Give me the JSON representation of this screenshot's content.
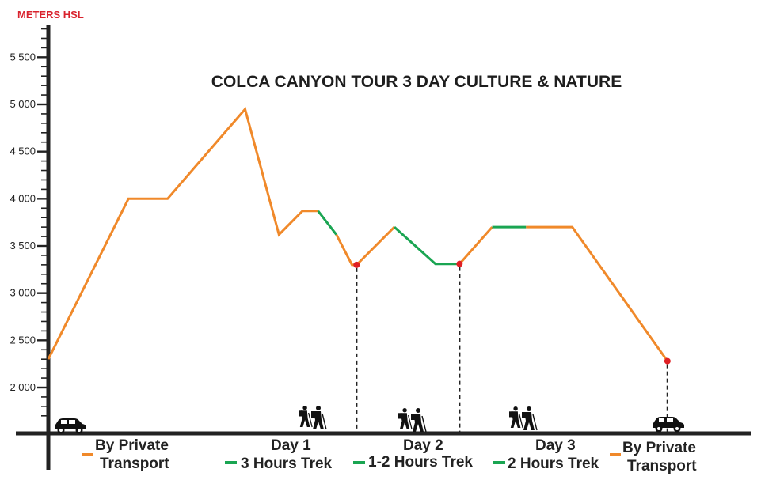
{
  "chart_data": {
    "type": "line",
    "title": "COLCA CANYON TOUR 3 DAY CULTURE & NATURE",
    "ylabel": "METERS HSL",
    "xlabel": "",
    "ylim": [
      1550,
      5850
    ],
    "y_ticks": [
      2000,
      2500,
      3000,
      3500,
      4000,
      4500,
      5000,
      5500
    ],
    "y_tick_labels": [
      "2 000",
      "2 500",
      "3 000",
      "3 500",
      "4 000",
      "4 500",
      "5 000",
      "5 500"
    ],
    "x_range": [
      0,
      100
    ],
    "grid": false,
    "colors": {
      "transport": "#f0892a",
      "trek": "#1aa552",
      "marker": "#e02024",
      "axis": "#222222",
      "title_accent": "#d9232e"
    },
    "series": [
      {
        "mode": "transport",
        "x": [
          0,
          12.3,
          18.3,
          30.2,
          35.4,
          39.0,
          41.4
        ],
        "y": [
          2300,
          4000,
          4000,
          4950,
          3620,
          3870,
          3870
        ]
      },
      {
        "mode": "trek",
        "x": [
          41.4,
          44.2
        ],
        "y": [
          3870,
          3620
        ]
      },
      {
        "mode": "transport",
        "x": [
          44.2,
          46.6,
          47.3,
          53.1
        ],
        "y": [
          3620,
          3300,
          3300,
          3700
        ]
      },
      {
        "mode": "trek",
        "x": [
          53.1,
          59.4,
          63.1
        ],
        "y": [
          3700,
          3310,
          3310
        ]
      },
      {
        "mode": "transport",
        "x": [
          63.1,
          68.1
        ],
        "y": [
          3310,
          3700
        ]
      },
      {
        "mode": "trek",
        "x": [
          68.1,
          73.3
        ],
        "y": [
          3700,
          3700
        ]
      },
      {
        "mode": "transport",
        "x": [
          73.3,
          80.4,
          95.0
        ],
        "y": [
          3700,
          3700,
          2280
        ]
      }
    ],
    "markers": [
      {
        "x": 47.3,
        "y": 3300
      },
      {
        "x": 63.1,
        "y": 3310
      },
      {
        "x": 95.0,
        "y": 2280
      }
    ],
    "day_dividers_x": [
      47.3,
      63.1,
      95.0
    ],
    "legend": [
      {
        "label1": "By Private",
        "label2": "Transport",
        "mode": "transport"
      },
      {
        "label1": "Day 1",
        "sub": "3 Hours Trek",
        "mode": "trek"
      },
      {
        "label1": "Day 2",
        "sub": "1-2 Hours Trek",
        "mode": "trek"
      },
      {
        "label1": "Day 3",
        "sub": "2 Hours Trek",
        "mode": "trek"
      },
      {
        "label1": "By Private",
        "label2": "Transport",
        "mode": "transport"
      }
    ],
    "icons": [
      "car-icon",
      "hikers-icon",
      "hikers-icon",
      "hikers-icon",
      "car-icon"
    ]
  }
}
